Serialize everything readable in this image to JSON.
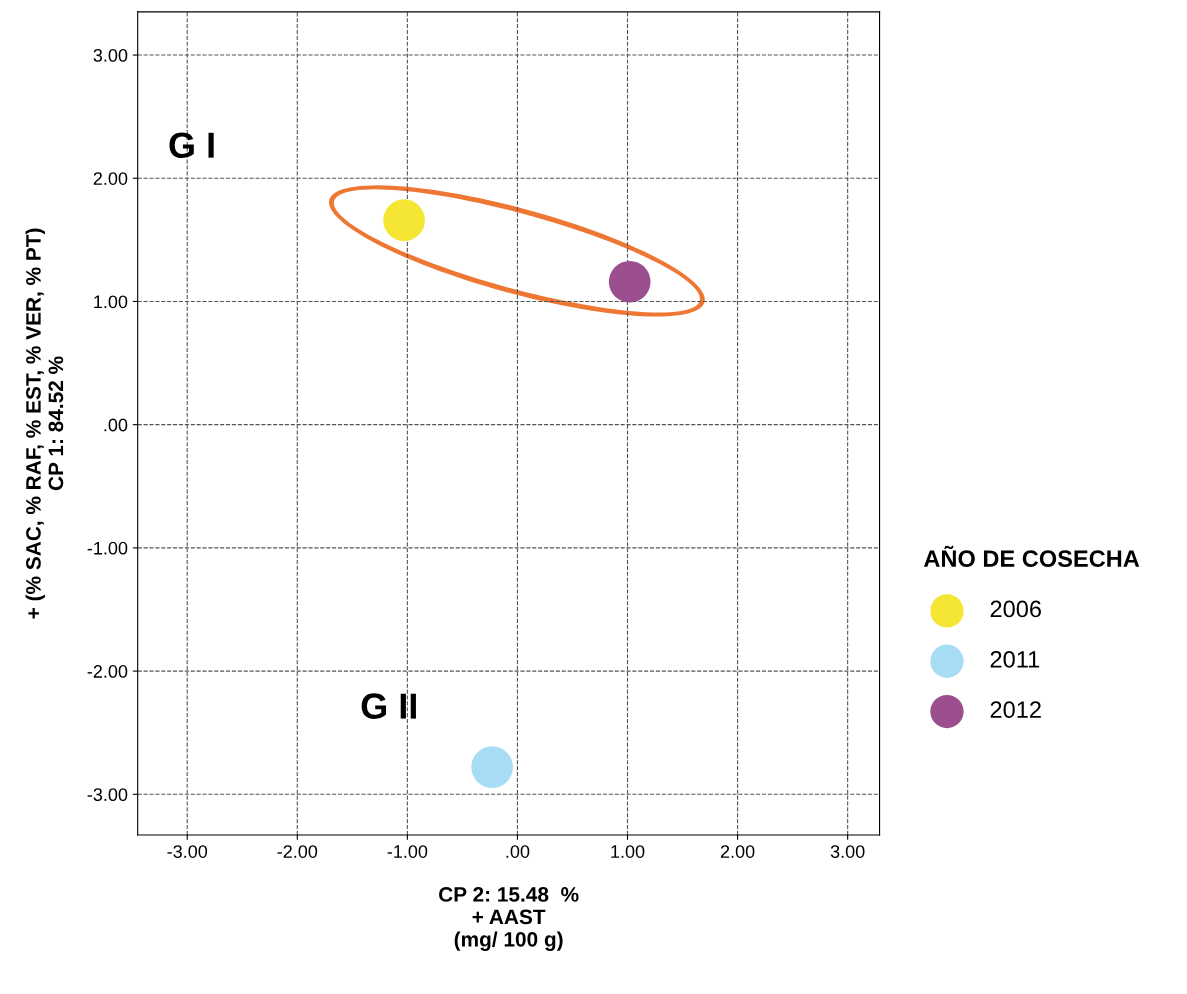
{
  "chart_data": {
    "type": "scatter",
    "xlabel": "CP 2: 15.48  %\n+ AAST\n(mg/ 100 g)",
    "ylabel": "+ (% SAC, % RAF, % EST, % VER, % PT)\nCP 1: 84.52 %",
    "legend_title": "AÑO DE COSECHA",
    "series": [
      {
        "name": "2006",
        "color": "#f5e633",
        "x": [
          -1.03
        ],
        "values": [
          1.66
        ]
      },
      {
        "name": "2011",
        "color": "#a8dcf5",
        "x": [
          -0.23
        ],
        "values": [
          -2.78
        ]
      },
      {
        "name": "2012",
        "color": "#9b4f8e",
        "x": [
          1.02
        ],
        "values": [
          1.16
        ]
      }
    ],
    "xlim": [
      -3.45,
      3.29
    ],
    "ylim": [
      -3.33,
      3.35
    ],
    "xticks": [
      {
        "value": -3,
        "label": "-3.00"
      },
      {
        "value": -2,
        "label": "-2.00"
      },
      {
        "value": -1,
        "label": "-1.00"
      },
      {
        "value": 0,
        "label": ".00"
      },
      {
        "value": 1,
        "label": "1.00"
      },
      {
        "value": 2,
        "label": "2.00"
      },
      {
        "value": 3,
        "label": "3.00"
      }
    ],
    "yticks": [
      {
        "value": -3,
        "label": "-3.00"
      },
      {
        "value": -2,
        "label": "-2.00"
      },
      {
        "value": -1,
        "label": "-1.00"
      },
      {
        "value": 0,
        "label": ".00"
      },
      {
        "value": 1,
        "label": "1.00"
      },
      {
        "value": 2,
        "label": "2.00"
      },
      {
        "value": 3,
        "label": "3.00"
      }
    ],
    "annotations": [
      "G I",
      "G II"
    ],
    "grid": true,
    "legend": "right",
    "marker": "circle"
  }
}
